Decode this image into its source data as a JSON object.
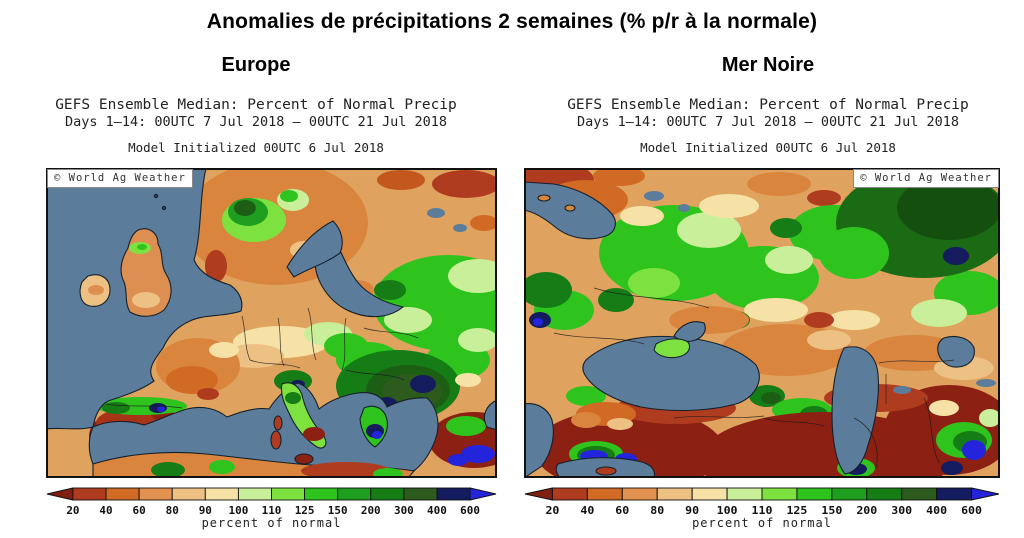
{
  "page_title": "Anomalies de précipitations 2 semaines (% p/r à la normale)",
  "panels": [
    {
      "region_label": "Europe",
      "header": {
        "line1": "GEFS Ensemble Median: Percent of Normal Precip",
        "line2": "Days 1–14: 00UTC 7 Jul 2018 – 00UTC 21 Jul 2018",
        "line3": "Model Initialized 00UTC 6 Jul 2018"
      },
      "watermark": "© World Ag Weather"
    },
    {
      "region_label": "Mer Noire",
      "header": {
        "line1": "GEFS Ensemble Median: Percent of Normal Precip",
        "line2": "Days 1–14: 00UTC 7 Jul 2018 – 00UTC 21 Jul 2018",
        "line3": "Model Initialized 00UTC 6 Jul 2018"
      },
      "watermark": "© World Ag Weather"
    }
  ],
  "colorbar": {
    "label": "percent of normal",
    "ticks": [
      "20",
      "40",
      "60",
      "80",
      "90",
      "100",
      "110",
      "125",
      "150",
      "200",
      "300",
      "400",
      "600"
    ],
    "segment_colors": [
      "#b03c20",
      "#d06a24",
      "#e2914e",
      "#edc184",
      "#f6e2a6",
      "#c9ef9a",
      "#7de23f",
      "#2ec41d",
      "#1f9e1f",
      "#167c16",
      "#2d5a1d",
      "#141b5e"
    ],
    "arrow_left_color": "#7e1f10",
    "arrow_right_color": "#2424dd"
  },
  "map_colors": {
    "sea": "#5b7d9b",
    "land_base": "#e0a35f",
    "coastline": "#16202a"
  }
}
